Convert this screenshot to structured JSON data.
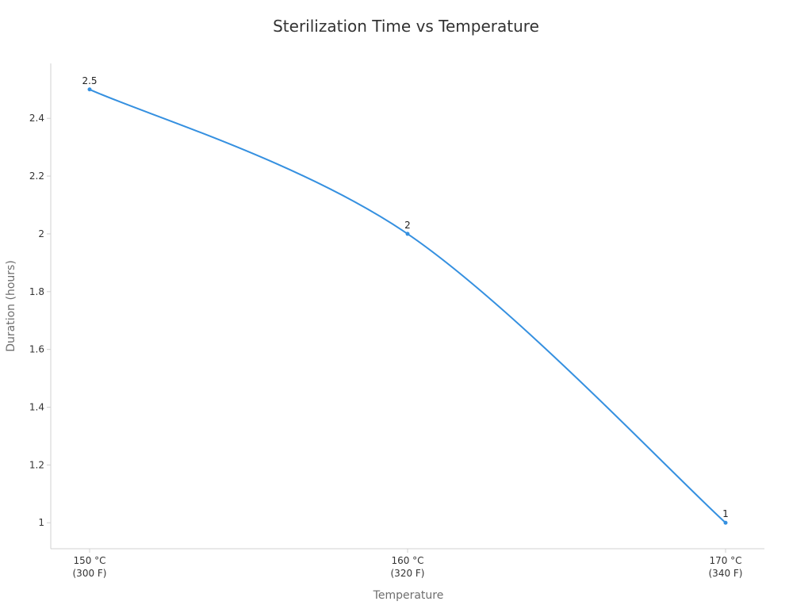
{
  "chart_data": {
    "type": "line",
    "title": "Sterilization Time vs Temperature",
    "xlabel": "Temperature",
    "ylabel": "Duration (hours)",
    "categories": [
      [
        "150 °C",
        "(300 F)"
      ],
      [
        "160 °C",
        "(320 F)"
      ],
      [
        "170 °C",
        "(340 F)"
      ]
    ],
    "series": [
      {
        "values": [
          2.5,
          2,
          1
        ],
        "data_labels": [
          "2.5",
          "2",
          "1"
        ]
      }
    ],
    "ylim": [
      0.91,
      2.59
    ],
    "yticks": [
      1,
      1.2,
      1.4,
      1.6,
      1.8,
      2,
      2.2,
      2.4
    ],
    "ytick_labels": [
      "1",
      "1.2",
      "1.4",
      "1.6",
      "1.8",
      "2",
      "2.2",
      "2.4"
    ],
    "smooth": true,
    "grid": false,
    "legend": "none",
    "colors": {
      "line": "#3590e0",
      "axis": "#d0d0d0"
    }
  }
}
